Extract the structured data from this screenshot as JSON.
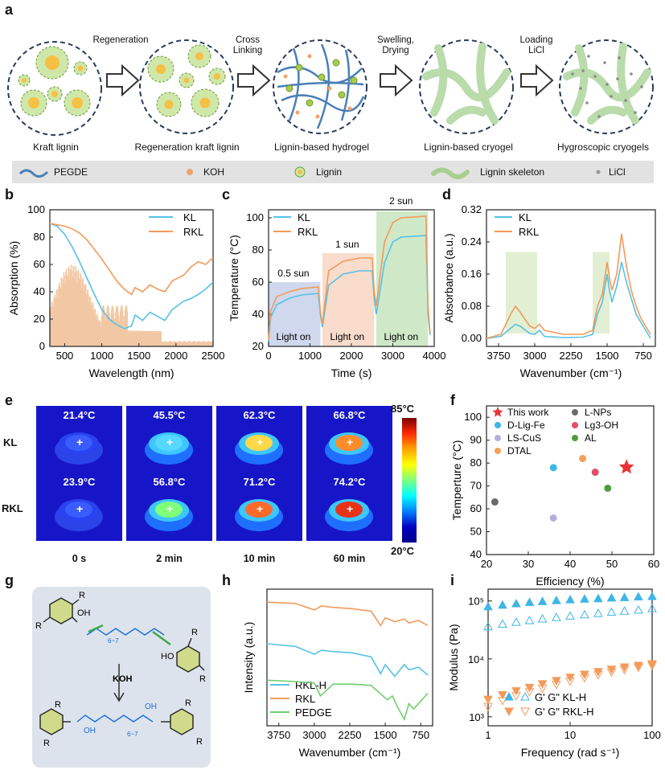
{
  "panels": {
    "a": {
      "letter": "a",
      "steps": [
        "Kraft lignin",
        "Regeneration kraft lignin",
        "Lignin-based hydrogel",
        "Lignin-based cryogel",
        "Hygroscopic cryogels"
      ],
      "arrows": [
        "Regeneration",
        "Cross\nLinking",
        "Swelling,\nDrying",
        "Loading\nLiCl"
      ],
      "legend": [
        "PEGDE",
        "KOH",
        "Lignin",
        "Lignin skeleton",
        "LiCl"
      ],
      "colors": {
        "pegde": "#4a7fb8",
        "koh": "#f2a26b",
        "lignin": "#a8cc4a",
        "skeleton": "#b2d8a0",
        "licl": "#9a9a9a"
      }
    },
    "b": "b",
    "c": "c",
    "d": "d",
    "e": "e",
    "f": "f",
    "g": "g",
    "h": "h",
    "i": "i"
  },
  "thermal": {
    "rows": [
      "KL",
      "RKL"
    ],
    "cols": [
      "0 s",
      "2 min",
      "10 min",
      "60 min"
    ],
    "temps": [
      [
        "21.4°C",
        "45.5°C",
        "62.3°C",
        "66.8°C"
      ],
      [
        "23.9°C",
        "56.8°C",
        "71.2°C",
        "74.2°C"
      ]
    ],
    "scale_max": "85°C",
    "scale_min": "20°C"
  },
  "reaction": {
    "reagent": "KOH",
    "r": "R",
    "oh": "OH",
    "ho": "HO",
    "o": "O",
    "n": "6~7"
  },
  "colors": {
    "kl": "#56c1e6",
    "rkl": "#f29a5a",
    "pedge": "#6fcf6f",
    "star": "#e83434"
  },
  "chart_data": [
    {
      "id": "b",
      "type": "line",
      "xlabel": "Wavelength (nm)",
      "ylabel": "Absorption (%)",
      "xlim": [
        300,
        2500
      ],
      "ylim": [
        0,
        100
      ],
      "xticks": [
        500,
        1000,
        1500,
        2000,
        2500
      ],
      "yticks": [
        0,
        20,
        40,
        60,
        80,
        100
      ],
      "series": [
        {
          "name": "KL",
          "x": [
            300,
            400,
            500,
            600,
            700,
            800,
            900,
            1000,
            1100,
            1200,
            1300,
            1400,
            1450,
            1550,
            1650,
            1750,
            1850,
            1950,
            2100,
            2200,
            2300,
            2400,
            2500
          ],
          "y": [
            90,
            88,
            82,
            73,
            62,
            50,
            38,
            27,
            20,
            16,
            13,
            15,
            23,
            19,
            25,
            22,
            19,
            27,
            33,
            35,
            38,
            42,
            47
          ]
        },
        {
          "name": "RKL",
          "x": [
            300,
            400,
            500,
            600,
            700,
            800,
            900,
            1000,
            1100,
            1200,
            1300,
            1400,
            1450,
            1550,
            1650,
            1750,
            1850,
            1950,
            2100,
            2200,
            2300,
            2400,
            2500
          ],
          "y": [
            90,
            89,
            88,
            86,
            83,
            78,
            71,
            64,
            56,
            48,
            42,
            38,
            43,
            40,
            45,
            42,
            40,
            48,
            52,
            58,
            62,
            60,
            65
          ]
        }
      ],
      "background": "solar spectrum"
    },
    {
      "id": "c",
      "type": "line",
      "xlabel": "Time (s)",
      "ylabel": "Temperature (°C)",
      "xlim": [
        0,
        4000
      ],
      "ylim": [
        20,
        105
      ],
      "xticks": [
        0,
        1000,
        2000,
        3000,
        4000
      ],
      "yticks": [
        20,
        40,
        60,
        80,
        100
      ],
      "annotations": [
        "0.5 sun",
        "1 sun",
        "2 sun",
        "Light on",
        "Light on",
        "Light on"
      ],
      "series": [
        {
          "name": "KL",
          "x": [
            0,
            50,
            200,
            500,
            800,
            1200,
            1250,
            1300,
            1450,
            1800,
            2200,
            2500,
            2550,
            2600,
            2800,
            3000,
            3200,
            3800,
            3850,
            3900
          ],
          "y": [
            23,
            38,
            46,
            50,
            52,
            53,
            40,
            32,
            58,
            65,
            67,
            67,
            50,
            40,
            72,
            85,
            88,
            89,
            40,
            27
          ]
        },
        {
          "name": "RKL",
          "x": [
            0,
            50,
            200,
            500,
            800,
            1200,
            1250,
            1300,
            1450,
            1800,
            2200,
            2500,
            2550,
            2600,
            2800,
            3000,
            3200,
            3800,
            3850,
            3900
          ],
          "y": [
            24,
            42,
            51,
            54,
            56,
            57,
            42,
            34,
            67,
            73,
            75,
            75,
            55,
            45,
            85,
            97,
            100,
            101,
            45,
            28
          ]
        }
      ]
    },
    {
      "id": "d",
      "type": "line",
      "xlabel": "Wavenumber (cm-1)",
      "ylabel": "Absorbance (a.u.)",
      "xlim": [
        4000,
        500
      ],
      "ylim": [
        -0.02,
        0.32
      ],
      "xticks": [
        3750,
        3000,
        2250,
        1500,
        750
      ],
      "yticks": [
        0.0,
        0.08,
        0.16,
        0.24,
        0.32
      ],
      "series": [
        {
          "name": "KL",
          "x": [
            4000,
            3700,
            3500,
            3400,
            3300,
            3100,
            3000,
            2900,
            2800,
            2400,
            2000,
            1800,
            1700,
            1600,
            1500,
            1450,
            1400,
            1300,
            1200,
            1100,
            1000,
            900,
            800,
            700,
            600
          ],
          "y": [
            0.0,
            0.005,
            0.025,
            0.035,
            0.03,
            0.012,
            0.01,
            0.02,
            0.005,
            0.002,
            0.003,
            0.01,
            0.06,
            0.09,
            0.16,
            0.12,
            0.09,
            0.13,
            0.19,
            0.14,
            0.1,
            0.06,
            0.04,
            0.02,
            0.0
          ]
        },
        {
          "name": "RKL",
          "x": [
            4000,
            3700,
            3500,
            3400,
            3300,
            3100,
            3000,
            2900,
            2800,
            2400,
            2000,
            1800,
            1700,
            1600,
            1500,
            1450,
            1400,
            1300,
            1200,
            1100,
            1000,
            900,
            800,
            700,
            600
          ],
          "y": [
            0.0,
            0.01,
            0.06,
            0.08,
            0.065,
            0.03,
            0.025,
            0.035,
            0.02,
            0.01,
            0.01,
            0.02,
            0.08,
            0.11,
            0.19,
            0.15,
            0.12,
            0.16,
            0.26,
            0.18,
            0.12,
            0.08,
            0.05,
            0.03,
            0.01
          ]
        }
      ],
      "highlights": [
        [
          3600,
          2950
        ],
        [
          1800,
          1450
        ]
      ]
    },
    {
      "id": "f",
      "type": "scatter",
      "xlabel": "Efficiency (%)",
      "ylabel": "Temperture (°C)",
      "xlim": [
        20,
        60
      ],
      "ylim": [
        40,
        105
      ],
      "xticks": [
        20,
        30,
        40,
        50,
        60
      ],
      "yticks": [
        40,
        50,
        60,
        70,
        80,
        90,
        100
      ],
      "points": [
        {
          "name": "This work",
          "x": 53.5,
          "y": 78.2,
          "color": "#e83434",
          "marker": "star"
        },
        {
          "name": "L-NPs",
          "x": 22,
          "y": 63,
          "color": "#6a6a6a",
          "marker": "circle"
        },
        {
          "name": "D-Lig-Fe",
          "x": 36,
          "y": 78,
          "color": "#3db6e6",
          "marker": "circle"
        },
        {
          "name": "Lg3-OH",
          "x": 46,
          "y": 76,
          "color": "#e34d6c",
          "marker": "circle"
        },
        {
          "name": "LS-CuS",
          "x": 36,
          "y": 56,
          "color": "#b4aee0",
          "marker": "circle"
        },
        {
          "name": "AL",
          "x": 49,
          "y": 69,
          "color": "#4f9e3d",
          "marker": "circle"
        },
        {
          "name": "DTAL",
          "x": 43,
          "y": 82,
          "color": "#f4a157",
          "marker": "circle"
        }
      ]
    },
    {
      "id": "h",
      "type": "line",
      "xlabel": "Wavenumber (cm-1)",
      "ylabel": "Intensity (a.u.)",
      "xlim": [
        4000,
        500
      ],
      "xticks": [
        3750,
        3000,
        2250,
        1500,
        750
      ],
      "series": [
        {
          "name": "RKL-H",
          "x": [
            4000,
            3400,
            3000,
            2850,
            2600,
            2200,
            1800,
            1600,
            1500,
            1300,
            1100,
            1000,
            800,
            600
          ],
          "y": [
            0.58,
            0.56,
            0.5,
            0.53,
            0.52,
            0.51,
            0.48,
            0.35,
            0.42,
            0.33,
            0.42,
            0.38,
            0.4,
            0.34
          ]
        },
        {
          "name": "RKL",
          "x": [
            4000,
            3400,
            3000,
            2850,
            2600,
            2200,
            1800,
            1600,
            1500,
            1300,
            1100,
            1000,
            800,
            600
          ],
          "y": [
            0.9,
            0.89,
            0.84,
            0.87,
            0.86,
            0.85,
            0.83,
            0.72,
            0.78,
            0.75,
            0.77,
            0.74,
            0.76,
            0.72
          ]
        },
        {
          "name": "PEDGE",
          "x": [
            4000,
            3400,
            3000,
            2870,
            2600,
            2200,
            1800,
            1460,
            1350,
            1250,
            1100,
            1000,
            900,
            600
          ],
          "y": [
            0.3,
            0.29,
            0.28,
            0.18,
            0.27,
            0.27,
            0.26,
            0.15,
            0.18,
            0.1,
            0.0,
            0.12,
            0.08,
            0.2
          ]
        }
      ]
    },
    {
      "id": "i",
      "type": "scatter",
      "xlabel": "Frequency (rad s-1)",
      "ylabel": "Modulus (Pa)",
      "xscale": "log",
      "yscale": "log",
      "xlim": [
        1,
        100
      ],
      "ylim": [
        700,
        160000
      ],
      "xticks": [
        1,
        10,
        100
      ],
      "yticks": [
        1000,
        10000,
        100000
      ],
      "legend": [
        "G' G\"  KL-H",
        "G' G\"  RKL-H"
      ],
      "series": [
        {
          "name": "G' KL-H",
          "marker": "filled-triangle-up",
          "color": "#3db6e6",
          "x": [
            1,
            1.5,
            2.2,
            3.2,
            4.6,
            6.8,
            10,
            15,
            22,
            32,
            46,
            68,
            100
          ],
          "y": [
            80000,
            85000,
            90000,
            95000,
            98000,
            102000,
            105000,
            108000,
            110000,
            113000,
            115000,
            118000,
            120000
          ]
        },
        {
          "name": "G\" KL-H",
          "marker": "open-triangle-up",
          "color": "#3db6e6",
          "x": [
            1,
            1.5,
            2.2,
            3.2,
            4.6,
            6.8,
            10,
            15,
            22,
            32,
            46,
            68,
            100
          ],
          "y": [
            36000,
            40000,
            43000,
            46000,
            49000,
            52000,
            55000,
            58000,
            61000,
            64000,
            67000,
            70000,
            74000
          ]
        },
        {
          "name": "G' RKL-H",
          "marker": "filled-triangle-down",
          "color": "#f29a5a",
          "x": [
            1,
            1.5,
            2.2,
            3.2,
            4.6,
            6.8,
            10,
            15,
            22,
            32,
            46,
            68,
            100
          ],
          "y": [
            2000,
            2400,
            2800,
            3200,
            3700,
            4200,
            4800,
            5400,
            6000,
            6600,
            7200,
            7700,
            8200
          ]
        },
        {
          "name": "G\" RKL-H",
          "marker": "open-triangle-down",
          "color": "#f29a5a",
          "x": [
            1,
            1.5,
            2.2,
            3.2,
            4.6,
            6.8,
            10,
            15,
            22,
            32,
            46,
            68,
            100
          ],
          "y": [
            1500,
            1900,
            2300,
            2700,
            3100,
            3600,
            4100,
            4700,
            5300,
            5900,
            6500,
            7100,
            7700
          ]
        }
      ]
    }
  ]
}
